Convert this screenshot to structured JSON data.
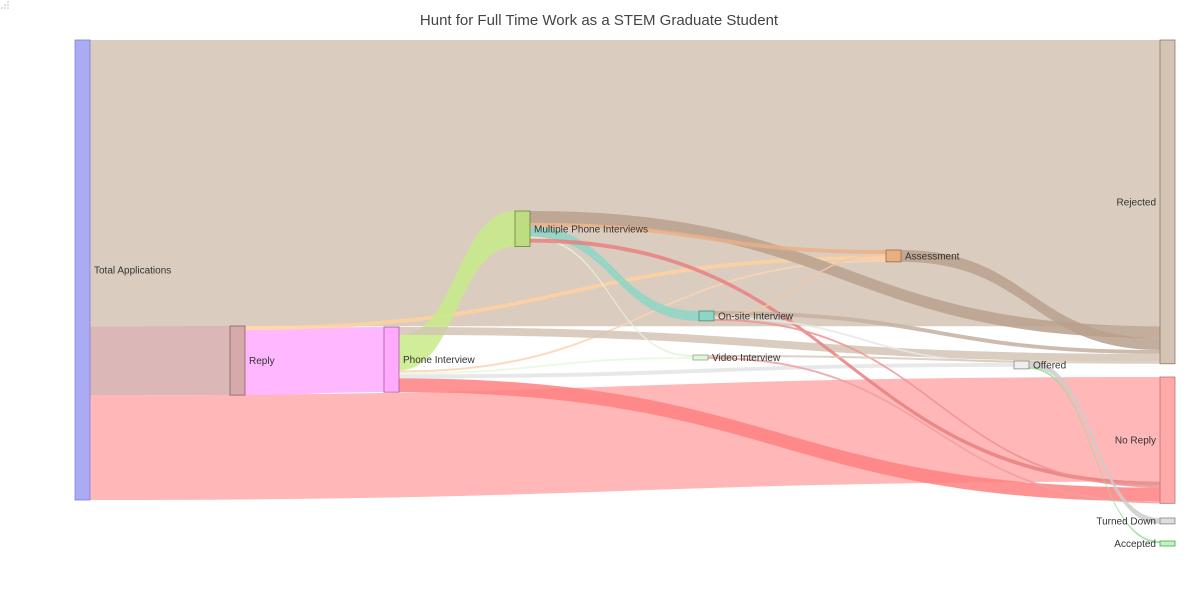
{
  "chart_data": {
    "type": "sankey",
    "title": "Hunt for Full Time Work as a STEM Graduate Student",
    "nodes": [
      {
        "id": "total",
        "label": "Total Applications",
        "color": "#aaaaf5",
        "stroke": "#8080d0"
      },
      {
        "id": "reply",
        "label": "Reply",
        "color": "#d6aaaa",
        "stroke": "#8a6060"
      },
      {
        "id": "phone",
        "label": "Phone Interview",
        "color": "#ffaaff",
        "stroke": "#a060a0"
      },
      {
        "id": "multi",
        "label": "Multiple Phone Interviews",
        "color": "#bedc82",
        "stroke": "#70803f"
      },
      {
        "id": "onsite",
        "label": "On-site Interview",
        "color": "#8cd6c6",
        "stroke": "#4a8a7c"
      },
      {
        "id": "video",
        "label": "Video Interview",
        "color": "#e4f4dc",
        "stroke": "#8aaa80"
      },
      {
        "id": "assess",
        "label": "Assessment",
        "color": "#e8b080",
        "stroke": "#9a6a40"
      },
      {
        "id": "offered",
        "label": "Offered",
        "color": "#eeeeee",
        "stroke": "#888888"
      },
      {
        "id": "rejected",
        "label": "Rejected",
        "color": "#d4c4b4",
        "stroke": "#8a7a6a"
      },
      {
        "id": "noreply",
        "label": "No Reply",
        "color": "#ffaaaa",
        "stroke": "#c07070"
      },
      {
        "id": "turned",
        "label": "Turned Down",
        "color": "#dddddd",
        "stroke": "#888888"
      },
      {
        "id": "accepted",
        "label": "Accepted",
        "color": "#bff5bf",
        "stroke": "#50a050"
      }
    ],
    "links": [
      {
        "source": "total",
        "target": "rejected",
        "value": 145,
        "color": "#d4c4b4"
      },
      {
        "source": "total",
        "target": "reply",
        "value": 35,
        "color": "#d6aaaa"
      },
      {
        "source": "total",
        "target": "noreply",
        "value": 53,
        "color": "#ffaaaa"
      },
      {
        "source": "reply",
        "target": "phone",
        "value": 33,
        "color": "#ffaaff"
      },
      {
        "source": "reply",
        "target": "assess",
        "value": 2,
        "color": "#ffd0a0"
      },
      {
        "source": "phone",
        "target": "multi",
        "value": 18,
        "color": "#c8ea88"
      },
      {
        "source": "phone",
        "target": "assess",
        "value": 1,
        "color": "#fad2b4"
      },
      {
        "source": "phone",
        "target": "video",
        "value": 1,
        "color": "#e8f8e0"
      },
      {
        "source": "phone",
        "target": "rejected",
        "value": 4,
        "color": "#d4c4b4"
      },
      {
        "source": "phone",
        "target": "offered",
        "value": 2,
        "color": "#e4e4e4"
      },
      {
        "source": "phone",
        "target": "noreply",
        "value": 7,
        "color": "#ff8080"
      },
      {
        "source": "multi",
        "target": "rejected",
        "value": 6,
        "color": "#b8a08c"
      },
      {
        "source": "multi",
        "target": "assess",
        "value": 2,
        "color": "#eab088"
      },
      {
        "source": "multi",
        "target": "onsite",
        "value": 5,
        "color": "#8cd6c6"
      },
      {
        "source": "multi",
        "target": "video",
        "value": 1,
        "color": "#e8f0dc"
      },
      {
        "source": "multi",
        "target": "noreply",
        "value": 2,
        "color": "#e88080"
      },
      {
        "source": "assess",
        "target": "rejected",
        "value": 6,
        "color": "#b8a08c"
      },
      {
        "source": "onsite",
        "target": "rejected",
        "value": 2,
        "color": "#c4b0a0"
      },
      {
        "source": "onsite",
        "target": "assess",
        "value": 1,
        "color": "#f2c8a4"
      },
      {
        "source": "onsite",
        "target": "noreply",
        "value": 1,
        "color": "#f09090"
      },
      {
        "source": "onsite",
        "target": "offered",
        "value": 1,
        "color": "#e8e8e8"
      },
      {
        "source": "video",
        "target": "noreply",
        "value": 1,
        "color": "#f0a0a0"
      },
      {
        "source": "video",
        "target": "rejected",
        "value": 1,
        "color": "#d8c8b8"
      },
      {
        "source": "offered",
        "target": "turned",
        "value": 3,
        "color": "#cccccc"
      },
      {
        "source": "offered",
        "target": "accepted",
        "value": 1,
        "color": "#9adc9a"
      }
    ]
  }
}
